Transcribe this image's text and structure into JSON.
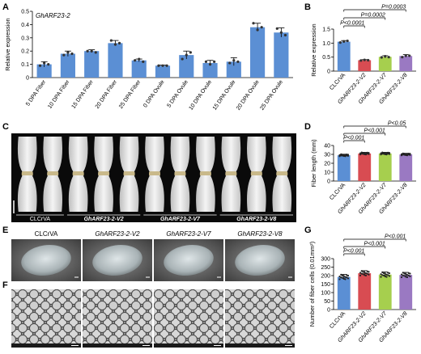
{
  "panel_letters": [
    "A",
    "B",
    "C",
    "D",
    "E",
    "F",
    "G"
  ],
  "chart_data": [
    {
      "panel": "A",
      "type": "bar",
      "title": "GhARF23-2",
      "ylabel": "Relative expression",
      "ylim": [
        0,
        0.5
      ],
      "yticks": [
        "0",
        "0.1",
        "0.2",
        "0.3",
        "0.4",
        "0.5"
      ],
      "categories": [
        "5 DPA Fiber",
        "10 DPA Fiber",
        "15 DPA Fiber",
        "20 DPA Fiber",
        "25 DPA Fiber",
        "0 DPA Ovule",
        "5 DPA Ovule",
        "10 DPA Ovule",
        "15 DPA Ovule",
        "20 DPA Ovule",
        "25 DPA Ovule"
      ],
      "values": [
        0.1,
        0.18,
        0.2,
        0.26,
        0.13,
        0.09,
        0.17,
        0.11,
        0.12,
        0.38,
        0.34
      ],
      "errors": [
        0.02,
        0.02,
        0.01,
        0.02,
        0.01,
        0.005,
        0.03,
        0.02,
        0.03,
        0.03,
        0.035
      ],
      "points": [
        [
          0.09,
          0.11,
          0.1
        ],
        [
          0.17,
          0.19,
          0.18
        ],
        [
          0.2,
          0.2,
          0.19
        ],
        [
          0.28,
          0.25,
          0.26
        ],
        [
          0.13,
          0.14,
          0.12
        ],
        [
          0.09,
          0.09,
          0.09
        ],
        [
          0.14,
          0.17,
          0.19
        ],
        [
          0.12,
          0.1,
          0.12
        ],
        [
          0.11,
          0.13,
          0.12
        ],
        [
          0.41,
          0.36,
          0.38
        ],
        [
          0.37,
          0.34,
          0.32
        ]
      ],
      "color": "#5b8fd4"
    },
    {
      "panel": "B",
      "type": "bar",
      "ylabel": "Relative expression",
      "ylim": [
        0,
        1.5
      ],
      "yticks": [
        "0",
        "0.5",
        "1.0",
        "1.5"
      ],
      "categories": [
        "CLCrVA",
        "GhARF23-2-V2",
        "GhARF23-2-V7",
        "GhARF23-2-V8"
      ],
      "values": [
        1.05,
        0.39,
        0.51,
        0.54
      ],
      "errors": [
        0.04,
        0.02,
        0.04,
        0.05
      ],
      "points": [
        [
          1.02,
          1.06,
          1.08
        ],
        [
          0.38,
          0.4,
          0.39
        ],
        [
          0.49,
          0.53,
          0.5
        ],
        [
          0.5,
          0.56,
          0.55
        ]
      ],
      "colors": [
        "#5b8fd4",
        "#d84c52",
        "#a6cf4e",
        "#9a79c2"
      ],
      "significance": [
        "P<0.0001",
        "P=0.0002",
        "P=0.0003"
      ]
    },
    {
      "panel": "D",
      "type": "bar",
      "ylabel": "Fiber length (mm)",
      "ylim": [
        0,
        40
      ],
      "yticks": [
        "0",
        "10",
        "20",
        "30",
        "40"
      ],
      "categories": [
        "CLCrVA",
        "GhARF23-2-V2",
        "GhARF23-2-V7",
        "GhARF23-2-V8"
      ],
      "values": [
        29,
        31,
        31,
        30
      ],
      "errors": [
        1.2,
        1.3,
        1.3,
        1.2
      ],
      "colors": [
        "#5b8fd4",
        "#d84c52",
        "#a6cf4e",
        "#9a79c2"
      ],
      "significance": [
        "P<0.001",
        "P<0.001",
        "P<0.05"
      ]
    },
    {
      "panel": "G",
      "type": "bar",
      "ylabel": "Number of fiber cells (0.01mm²)",
      "ylim": [
        0,
        300
      ],
      "yticks": [
        "0",
        "50",
        "100",
        "150",
        "200",
        "250",
        "300"
      ],
      "categories": [
        "CLCrVA",
        "GhARF23-2-V2",
        "GhARF23-2-V7",
        "GhARF23-2-V8"
      ],
      "values": [
        192,
        214,
        206,
        204
      ],
      "errors": [
        15,
        15,
        15,
        15
      ],
      "colors": [
        "#5b8fd4",
        "#d84c52",
        "#a6cf4e",
        "#9a79c2"
      ],
      "significance": [
        "P<0.001",
        "P<0.001",
        "P<0.001"
      ]
    }
  ],
  "panel_c": {
    "labels": [
      "CLCrVA",
      "GhARF23-2-V2",
      "GhARF23-2-V7",
      "GhARF23-2-V8"
    ],
    "pairs_per_group": [
      2,
      3,
      3,
      3
    ]
  },
  "panel_e": {
    "labels": [
      "CLCrVA",
      "GhARF23-2-V2",
      "GhARF23-2-V7",
      "GhARF23-2-V8"
    ]
  }
}
